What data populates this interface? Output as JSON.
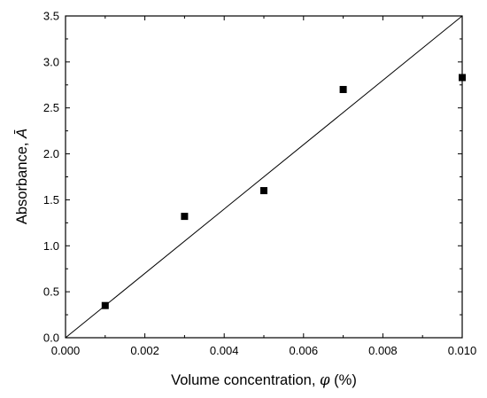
{
  "chart_data": {
    "type": "scatter",
    "title": "",
    "xlabel": "Volume concentration, φ (%)",
    "xlabel_prefix": "Volume concentration, ",
    "xlabel_symbol": "φ",
    "xlabel_unit": " (%)",
    "ylabel": "Absorbance, Ā",
    "ylabel_prefix": "Absorbance, ",
    "ylabel_symbol": "Ā",
    "xlim": [
      0.0,
      0.01
    ],
    "ylim": [
      0.0,
      3.5
    ],
    "x_ticks": [
      "0.000",
      "0.002",
      "0.004",
      "0.006",
      "0.008",
      "0.010"
    ],
    "y_ticks": [
      "0.0",
      "0.5",
      "1.0",
      "1.5",
      "2.0",
      "2.5",
      "3.0",
      "3.5"
    ],
    "grid": false,
    "series": [
      {
        "type": "scatter",
        "marker": "square",
        "color": "#000000",
        "points": [
          {
            "x": 0.001,
            "y": 0.35
          },
          {
            "x": 0.003,
            "y": 1.32
          },
          {
            "x": 0.005,
            "y": 1.6
          },
          {
            "x": 0.007,
            "y": 2.7
          },
          {
            "x": 0.01,
            "y": 2.83
          }
        ]
      },
      {
        "type": "line",
        "color": "#000000",
        "points": [
          {
            "x": 0.0,
            "y": 0.0
          },
          {
            "x": 0.01,
            "y": 3.5
          }
        ]
      }
    ]
  }
}
